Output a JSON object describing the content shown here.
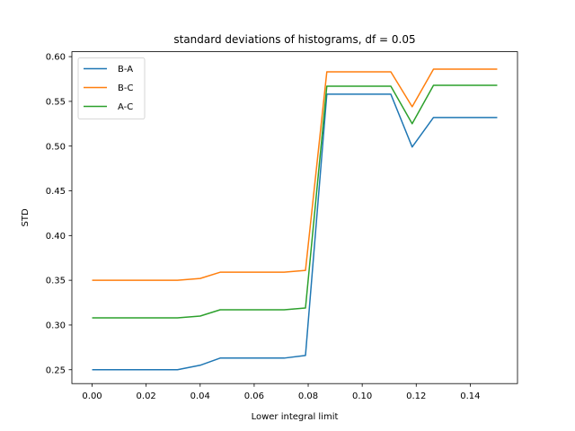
{
  "chart_data": {
    "type": "line",
    "title": "standard deviations of histograms, df = 0.05",
    "xlabel": "Lower integral limit",
    "ylabel": "STD",
    "xlim": [
      -0.0075,
      0.1575
    ],
    "ylim": [
      0.2345,
      0.6055
    ],
    "xticks": [
      0.0,
      0.02,
      0.04,
      0.06,
      0.08,
      0.1,
      0.12,
      0.14
    ],
    "xtick_labels": [
      "0.00",
      "0.02",
      "0.04",
      "0.06",
      "0.08",
      "0.10",
      "0.12",
      "0.14"
    ],
    "yticks": [
      0.25,
      0.3,
      0.35,
      0.4,
      0.45,
      0.5,
      0.55,
      0.6
    ],
    "ytick_labels": [
      "0.25",
      "0.30",
      "0.35",
      "0.40",
      "0.45",
      "0.50",
      "0.55",
      "0.60"
    ],
    "legend_position": "top-left",
    "grid": false,
    "series": [
      {
        "name": "B-A",
        "color": "#1f77b4",
        "x": [
          0.0,
          0.0316,
          0.04,
          0.0474,
          0.0711,
          0.079,
          0.0869,
          0.1106,
          0.1185,
          0.1264,
          0.15
        ],
        "y": [
          0.25,
          0.25,
          0.255,
          0.263,
          0.263,
          0.266,
          0.558,
          0.558,
          0.499,
          0.532,
          0.532
        ]
      },
      {
        "name": "B-C",
        "color": "#ff7f0e",
        "x": [
          0.0,
          0.0316,
          0.04,
          0.0474,
          0.0711,
          0.079,
          0.0869,
          0.1106,
          0.1185,
          0.1264,
          0.15
        ],
        "y": [
          0.35,
          0.35,
          0.352,
          0.359,
          0.359,
          0.361,
          0.583,
          0.583,
          0.544,
          0.586,
          0.586
        ]
      },
      {
        "name": "A-C",
        "color": "#2ca02c",
        "x": [
          0.0,
          0.0316,
          0.04,
          0.0474,
          0.0711,
          0.079,
          0.0869,
          0.1106,
          0.1185,
          0.1264,
          0.15
        ],
        "y": [
          0.308,
          0.308,
          0.31,
          0.317,
          0.317,
          0.319,
          0.567,
          0.567,
          0.525,
          0.568,
          0.568
        ]
      }
    ]
  }
}
